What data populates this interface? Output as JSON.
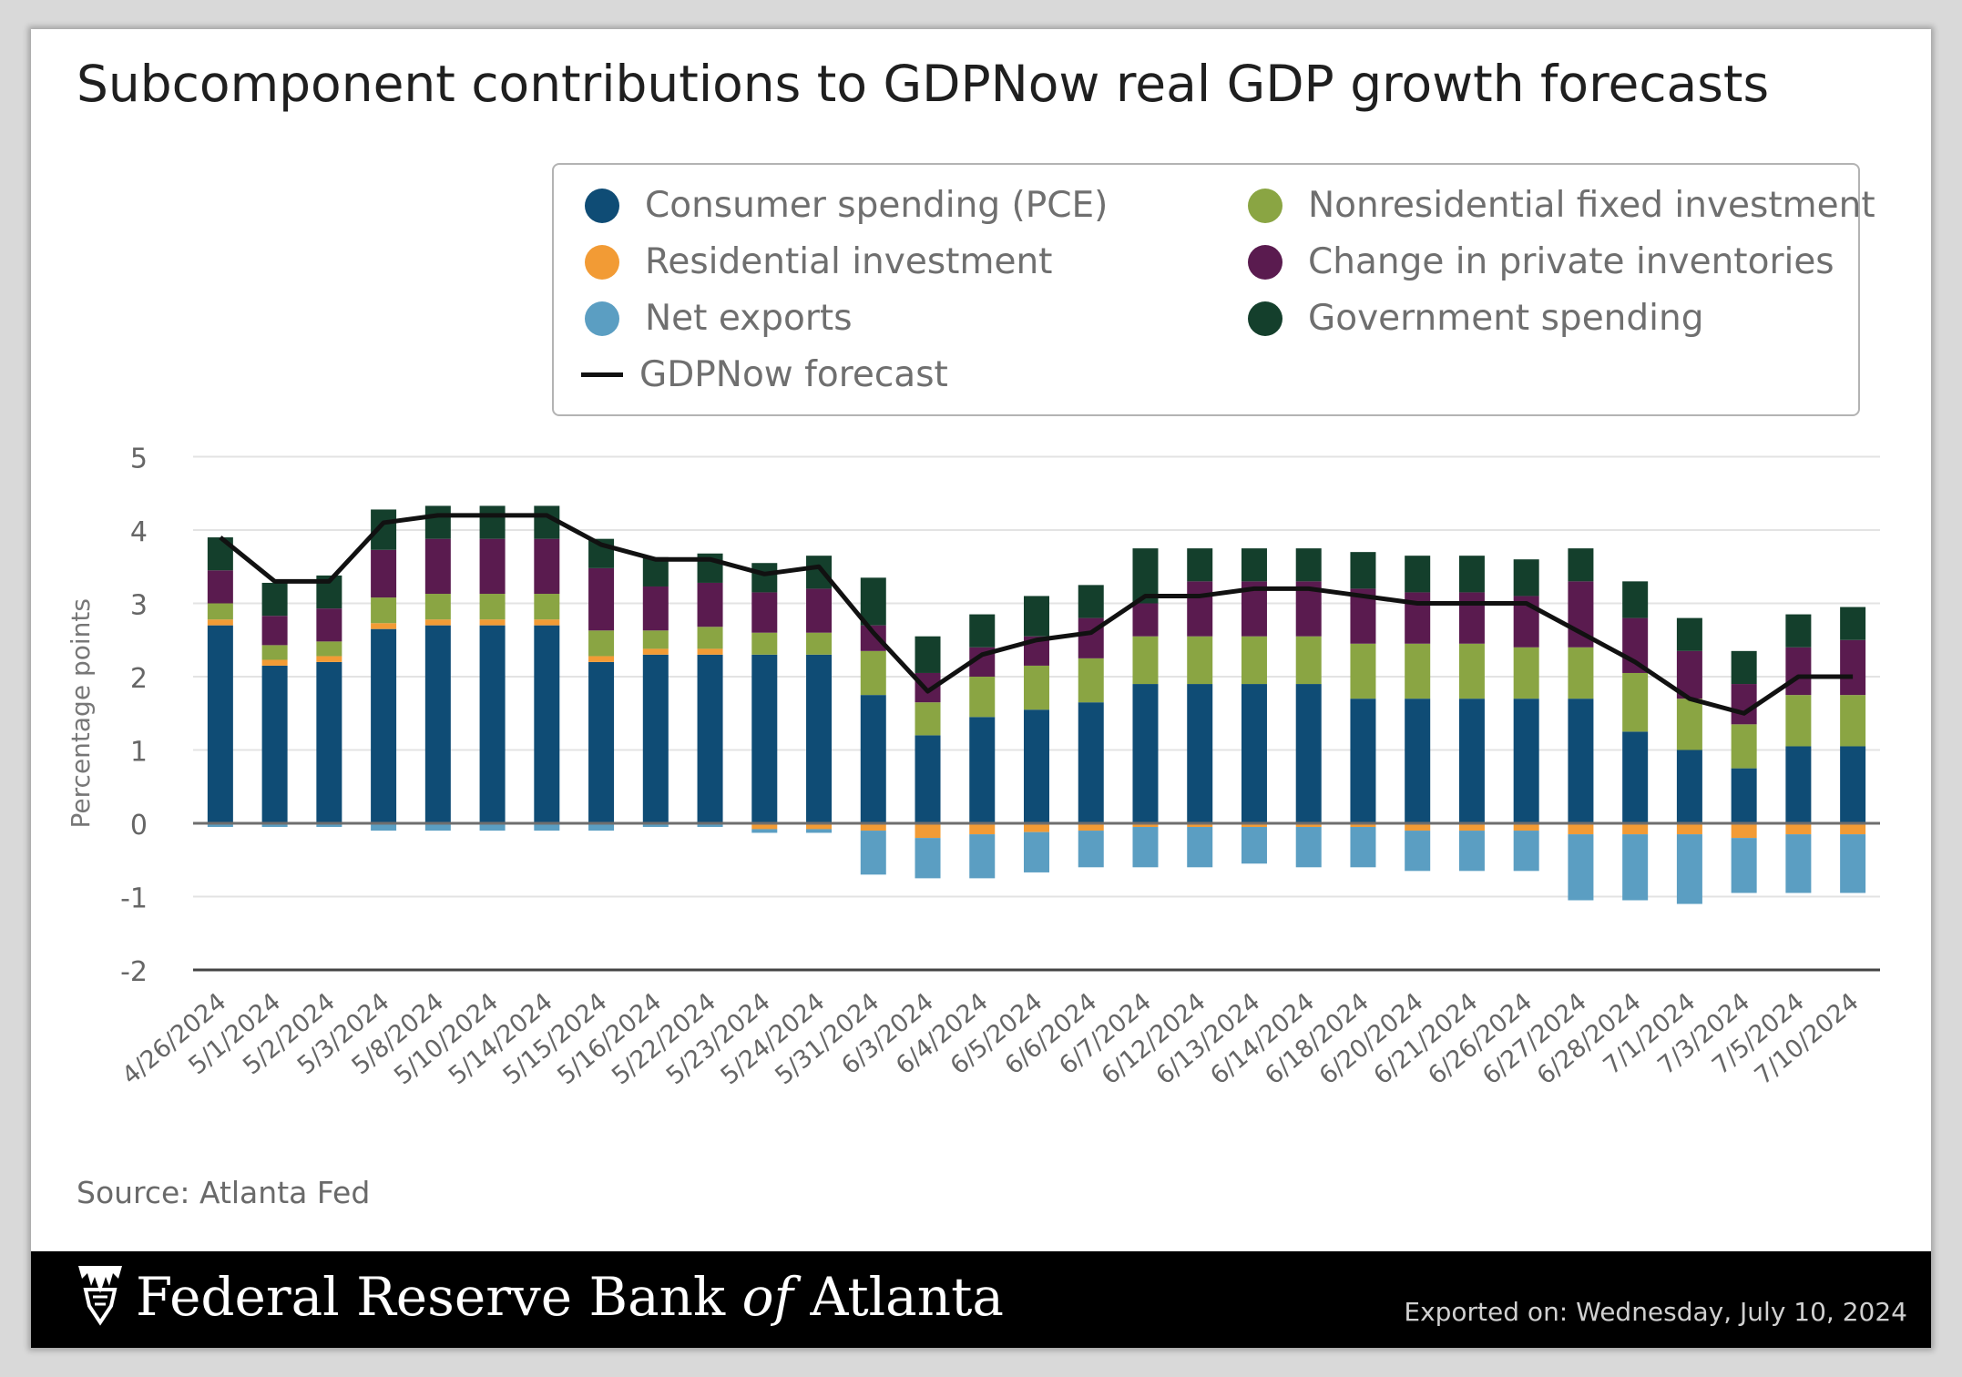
{
  "title": "Subcomponent contributions to GDPNow real GDP growth forecasts",
  "source": "Source: Atlanta Fed",
  "footer": {
    "org_part1": "Federal Reserve Bank ",
    "org_of": "of",
    "org_part2": " Atlanta",
    "exported": "Exported on: Wednesday, July 10, 2024"
  },
  "colors": {
    "pce": "#0f4c75",
    "nonres": "#8aa543",
    "residential": "#f29b35",
    "inventories": "#5a1b4f",
    "net_exports": "#5b9ec2",
    "government": "#143f2c",
    "line": "#111111"
  },
  "legend": [
    {
      "key": "pce",
      "label": "Consumer spending (PCE)"
    },
    {
      "key": "nonres",
      "label": "Nonresidential fixed investment"
    },
    {
      "key": "residential",
      "label": "Residential investment"
    },
    {
      "key": "inventories",
      "label": "Change in private inventories"
    },
    {
      "key": "net_exports",
      "label": "Net exports"
    },
    {
      "key": "government",
      "label": "Government spending"
    },
    {
      "key": "line",
      "label": "GDPNow forecast"
    }
  ],
  "chart_data": {
    "type": "bar",
    "stacked": true,
    "ylabel": "Percentage points",
    "ylim": [
      -2,
      5
    ],
    "yticks": [
      5,
      4,
      3,
      2,
      1,
      0,
      -1,
      -2
    ],
    "categories": [
      "4/26/2024",
      "5/1/2024",
      "5/2/2024",
      "5/3/2024",
      "5/8/2024",
      "5/10/2024",
      "5/14/2024",
      "5/15/2024",
      "5/16/2024",
      "5/22/2024",
      "5/23/2024",
      "5/24/2024",
      "5/31/2024",
      "6/3/2024",
      "6/4/2024",
      "6/5/2024",
      "6/6/2024",
      "6/7/2024",
      "6/12/2024",
      "6/13/2024",
      "6/14/2024",
      "6/18/2024",
      "6/20/2024",
      "6/21/2024",
      "6/26/2024",
      "6/27/2024",
      "6/28/2024",
      "7/1/2024",
      "7/3/2024",
      "7/5/2024",
      "7/10/2024"
    ],
    "series": [
      {
        "key": "pce",
        "name": "Consumer spending (PCE)",
        "values": [
          2.7,
          2.15,
          2.2,
          2.65,
          2.7,
          2.7,
          2.7,
          2.2,
          2.3,
          2.3,
          2.3,
          2.3,
          1.75,
          1.2,
          1.45,
          1.55,
          1.65,
          1.9,
          1.9,
          1.9,
          1.9,
          1.7,
          1.7,
          1.7,
          1.7,
          1.7,
          1.25,
          1.0,
          0.75,
          1.05,
          1.05
        ]
      },
      {
        "key": "residential",
        "name": "Residential investment",
        "values": [
          0.08,
          0.08,
          0.08,
          0.08,
          0.08,
          0.08,
          0.08,
          0.08,
          0.08,
          0.08,
          -0.08,
          -0.08,
          -0.1,
          -0.2,
          -0.15,
          -0.12,
          -0.1,
          -0.05,
          -0.05,
          -0.05,
          -0.05,
          -0.05,
          -0.1,
          -0.1,
          -0.1,
          -0.15,
          -0.15,
          -0.15,
          -0.2,
          -0.15,
          -0.15
        ]
      },
      {
        "key": "nonres",
        "name": "Nonresidential fixed investment",
        "values": [
          0.22,
          0.2,
          0.2,
          0.35,
          0.35,
          0.35,
          0.35,
          0.35,
          0.25,
          0.3,
          0.3,
          0.3,
          0.6,
          0.45,
          0.55,
          0.6,
          0.6,
          0.65,
          0.65,
          0.65,
          0.65,
          0.75,
          0.75,
          0.75,
          0.7,
          0.7,
          0.8,
          0.7,
          0.6,
          0.7,
          0.7
        ]
      },
      {
        "key": "inventories",
        "name": "Change in private inventories",
        "values": [
          0.45,
          0.4,
          0.45,
          0.65,
          0.75,
          0.75,
          0.75,
          0.85,
          0.6,
          0.6,
          0.55,
          0.6,
          0.35,
          0.4,
          0.4,
          0.4,
          0.55,
          0.45,
          0.75,
          0.75,
          0.75,
          0.75,
          0.7,
          0.7,
          0.7,
          0.9,
          0.75,
          0.65,
          0.55,
          0.65,
          0.75
        ]
      },
      {
        "key": "government",
        "name": "Government spending",
        "values": [
          0.45,
          0.45,
          0.45,
          0.55,
          0.45,
          0.45,
          0.45,
          0.4,
          0.4,
          0.4,
          0.4,
          0.45,
          0.65,
          0.5,
          0.45,
          0.55,
          0.45,
          0.75,
          0.45,
          0.45,
          0.45,
          0.5,
          0.5,
          0.5,
          0.5,
          0.45,
          0.5,
          0.45,
          0.45,
          0.45,
          0.45
        ]
      },
      {
        "key": "net_exports",
        "name": "Net exports",
        "values": [
          -0.05,
          -0.05,
          -0.05,
          -0.1,
          -0.1,
          -0.1,
          -0.1,
          -0.1,
          -0.05,
          -0.05,
          -0.05,
          -0.05,
          -0.6,
          -0.55,
          -0.6,
          -0.55,
          -0.5,
          -0.55,
          -0.55,
          -0.5,
          -0.55,
          -0.55,
          -0.55,
          -0.55,
          -0.55,
          -0.9,
          -0.9,
          -0.95,
          -0.75,
          -0.8,
          -0.8
        ]
      }
    ],
    "line": {
      "name": "GDPNow forecast",
      "values": [
        3.9,
        3.3,
        3.3,
        4.1,
        4.2,
        4.2,
        4.2,
        3.8,
        3.6,
        3.6,
        3.4,
        3.5,
        2.6,
        1.8,
        2.3,
        2.5,
        2.6,
        3.1,
        3.1,
        3.2,
        3.2,
        3.1,
        3.0,
        3.0,
        3.0,
        2.6,
        2.2,
        1.7,
        1.5,
        2.0,
        2.0
      ]
    }
  }
}
